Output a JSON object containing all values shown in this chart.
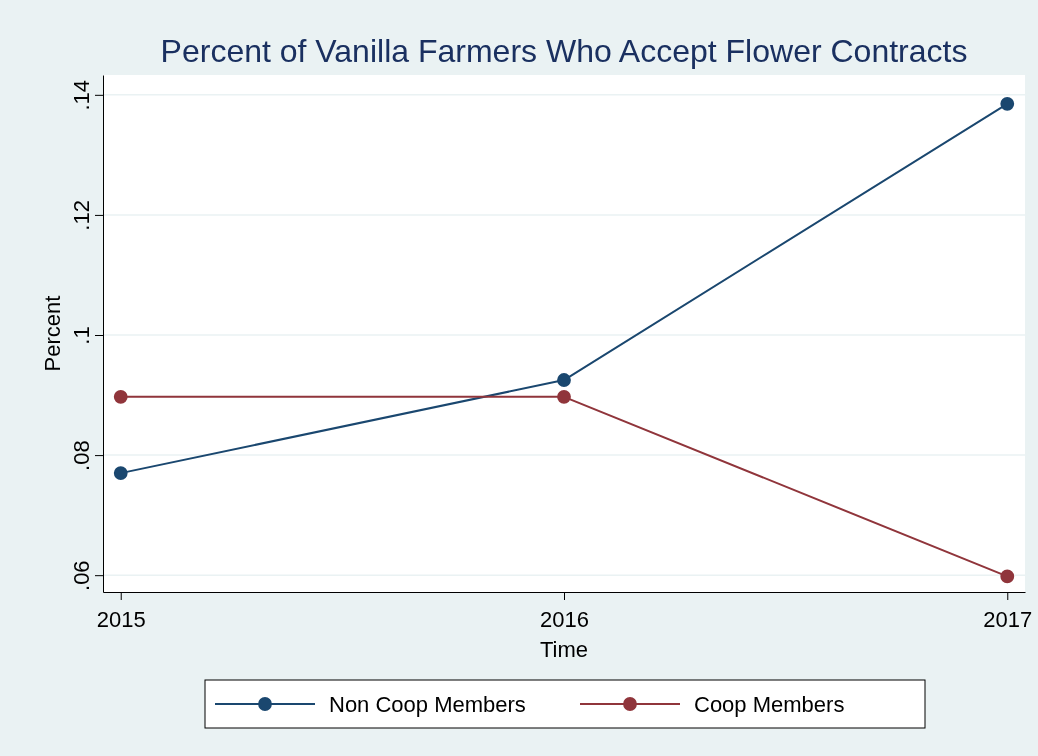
{
  "chart_data": {
    "type": "line",
    "title": "Percent of Vanilla Farmers Who Accept Flower Contracts",
    "xlabel": "Time",
    "ylabel": "Percent",
    "x": [
      2015,
      2016,
      2017
    ],
    "series": [
      {
        "name": "Non Coop Members",
        "color": "#1a476f",
        "values": [
          0.077,
          0.0925,
          0.1385
        ]
      },
      {
        "name": "Coop Members",
        "color": "#90353b",
        "values": [
          0.0897,
          0.0897,
          0.0598
        ]
      }
    ],
    "xlim": [
      2014.96,
      2017.04
    ],
    "xticks": [
      2015,
      2016,
      2017
    ],
    "ylim": [
      0.0572,
      0.1433
    ],
    "yticks": [
      {
        "value": 0.06,
        "label": ".06"
      },
      {
        "value": 0.08,
        "label": ".08"
      },
      {
        "value": 0.1,
        "label": ".1"
      },
      {
        "value": 0.12,
        "label": ".12"
      },
      {
        "value": 0.14,
        "label": ".14"
      }
    ],
    "grid": "y",
    "legend": "bottom",
    "marker": "circle",
    "line_style": "solid"
  }
}
